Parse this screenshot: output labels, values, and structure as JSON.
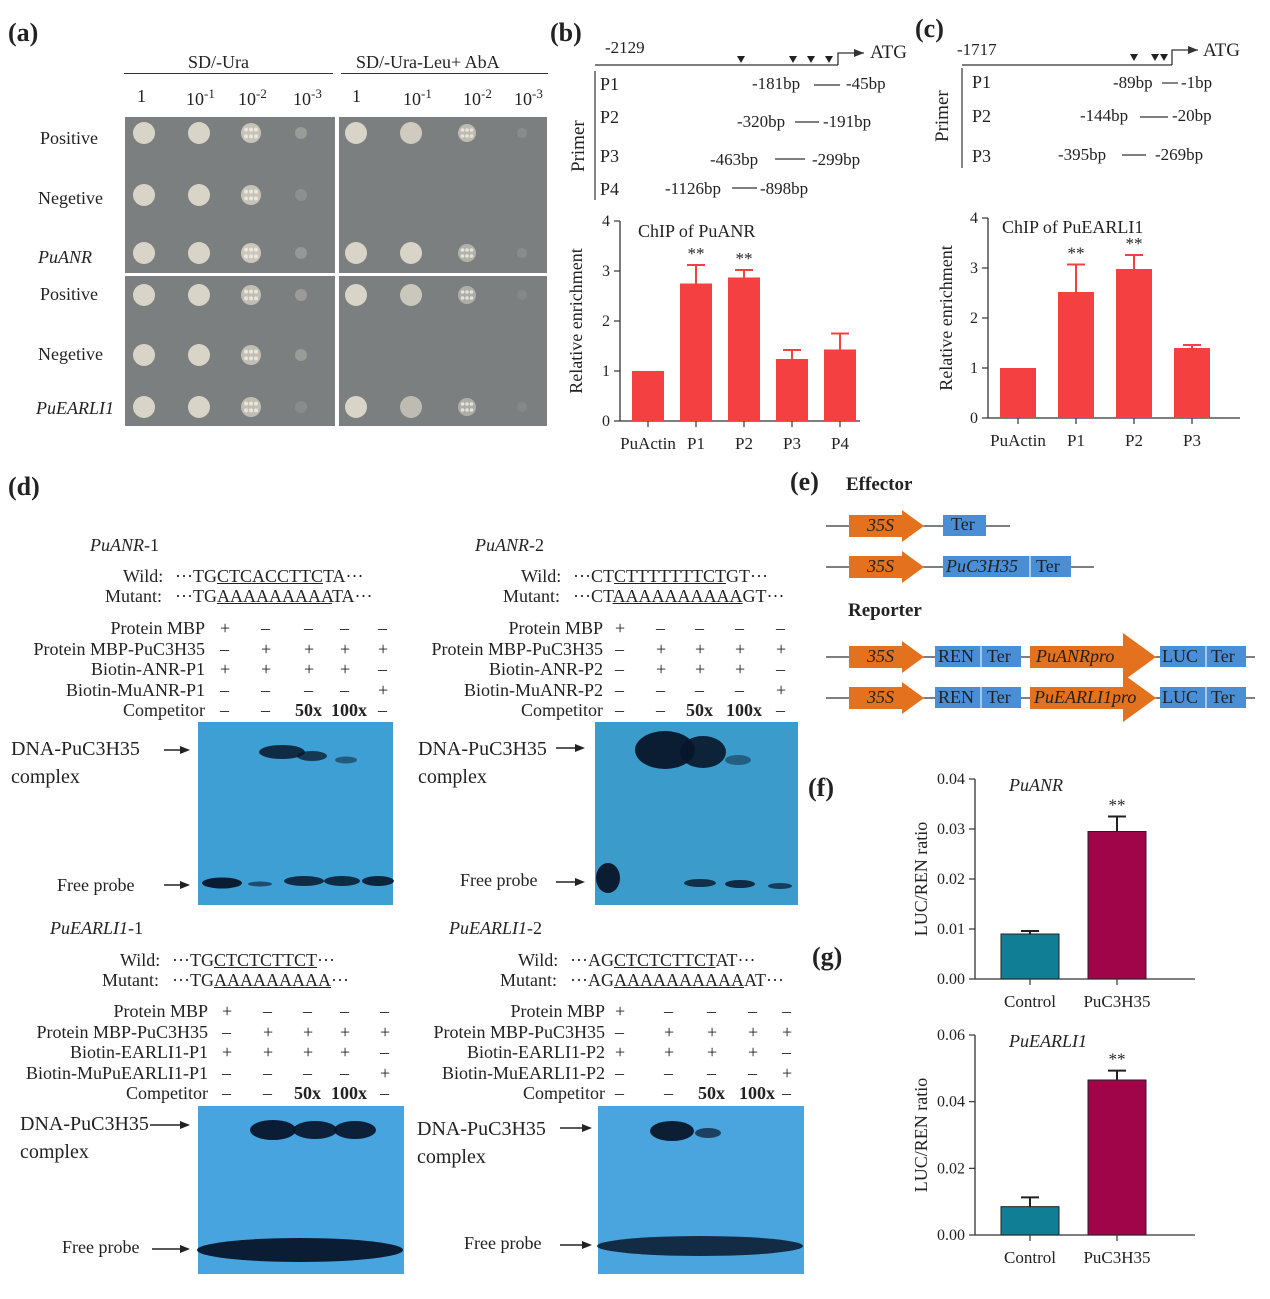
{
  "panel_labels": {
    "a": "(a)",
    "b": "(b)",
    "c": "(c)",
    "d": "(d)",
    "e": "(e)",
    "f": "(f)",
    "g": "(g)"
  },
  "panel_a": {
    "media": [
      "SD/-Ura",
      "SD/-Ura-Leu+ AbA"
    ],
    "dilutions": [
      "1",
      "10",
      "-1",
      "10",
      "-2",
      "10",
      "-3"
    ],
    "rows": [
      "Positive",
      "Negetive",
      "PuANR",
      "Positive",
      "Negetive",
      "PuEARLI1"
    ]
  },
  "panel_b": {
    "start": "-2129",
    "atg": "ATG",
    "primer_label": "Primer",
    "primers": [
      {
        "name": "P1",
        "from": "-181bp",
        "to": "-45bp"
      },
      {
        "name": "P2",
        "from": "-320bp",
        "to": "-191bp"
      },
      {
        "name": "P3",
        "from": "-463bp",
        "to": "-299bp"
      },
      {
        "name": "P4",
        "from": "-1126bp",
        "to": "-898bp"
      }
    ]
  },
  "panel_c": {
    "start": "-1717",
    "atg": "ATG",
    "primer_label": "Primer",
    "primers": [
      {
        "name": "P1",
        "from": "-89bp",
        "to": "-1bp"
      },
      {
        "name": "P2",
        "from": "-144bp",
        "to": "-20bp"
      },
      {
        "name": "P3",
        "from": "-395bp",
        "to": "-269bp"
      }
    ]
  },
  "panel_d": {
    "blocks": [
      {
        "title": "PuANR",
        "suffix": "-1",
        "wild_label": "Wild:",
        "wild_pre": "···TG",
        "wild_core": "CTCACCTTC",
        "wild_post": "TA···",
        "mut_label": "Mutant:",
        "mut_pre": "···TG",
        "mut_core": "AAAAAAAAA",
        "mut_post": "TA···",
        "rows": [
          {
            "label": "Protein MBP",
            "signs": [
              "+",
              "–",
              "–",
              "–",
              "–"
            ]
          },
          {
            "label": "Protein MBP-PuC3H35",
            "signs": [
              "–",
              "+",
              "+",
              "+",
              "+"
            ]
          },
          {
            "label": "Biotin-ANR-P1",
            "signs": [
              "+",
              "+",
              "+",
              "+",
              "–"
            ]
          },
          {
            "label": "Biotin-MuANR-P1",
            "signs": [
              "–",
              "–",
              "–",
              "–",
              "+"
            ]
          },
          {
            "label": "Competitor",
            "signs": [
              "–",
              "–",
              "50x",
              "100x",
              "–"
            ]
          }
        ],
        "complex": [
          "DNA-PuC3H35",
          "complex"
        ],
        "free": "Free probe"
      },
      {
        "title": "PuANR",
        "suffix": "-2",
        "wild_label": "Wild:",
        "wild_pre": "···CT",
        "wild_core": "CTTTTTTTCT",
        "wild_post": "GT···",
        "mut_label": "Mutant:",
        "mut_pre": "···CT",
        "mut_core": "AAAAAAAAAA",
        "mut_post": "GT···",
        "rows": [
          {
            "label": "Protein MBP",
            "signs": [
              "+",
              "–",
              "–",
              "–",
              "–"
            ]
          },
          {
            "label": "Protein MBP-PuC3H35",
            "signs": [
              "–",
              "+",
              "+",
              "+",
              "+"
            ]
          },
          {
            "label": "Biotin-ANR-P2",
            "signs": [
              "–",
              "+",
              "+",
              "+",
              "–"
            ]
          },
          {
            "label": "Biotin-MuANR-P2",
            "signs": [
              "–",
              "–",
              "–",
              "–",
              "+"
            ]
          },
          {
            "label": "Competitor",
            "signs": [
              "–",
              "–",
              "50x",
              "100x",
              "–"
            ]
          }
        ],
        "complex": [
          "DNA-PuC3H35",
          "complex"
        ],
        "free": "Free probe"
      },
      {
        "title": "PuEARLI1",
        "suffix": "-1",
        "wild_label": "Wild:",
        "wild_pre": "···TG",
        "wild_core": "CTCTCTTCT",
        "wild_post": "···",
        "mut_label": "Mutant:",
        "mut_pre": "···TG",
        "mut_core": "AAAAAAAAA",
        "mut_post": "···",
        "rows": [
          {
            "label": "Protein MBP",
            "signs": [
              "+",
              "–",
              "–",
              "–",
              "–"
            ]
          },
          {
            "label": "Protein MBP-PuC3H35",
            "signs": [
              "–",
              "+",
              "+",
              "+",
              "+"
            ]
          },
          {
            "label": "Biotin-EARLI1-P1",
            "signs": [
              "+",
              "+",
              "+",
              "+",
              "–"
            ]
          },
          {
            "label": "Biotin-MuPuEARLI1-P1",
            "signs": [
              "–",
              "–",
              "–",
              "–",
              "+"
            ]
          },
          {
            "label": "Competitor",
            "signs": [
              "–",
              "–",
              "50x",
              "100x",
              "–"
            ]
          }
        ],
        "complex": [
          "DNA-PuC3H35",
          "complex"
        ],
        "free": "Free probe"
      },
      {
        "title": "PuEARLI1",
        "suffix": "-2",
        "wild_label": "Wild:",
        "wild_pre": "···AG",
        "wild_core": "CTCTCTTCT",
        "wild_post": "AT···",
        "mut_label": "Mutant:",
        "mut_pre": "···AG",
        "mut_core": "AAAAAAAAAA",
        "mut_post": "AT···",
        "rows": [
          {
            "label": "Protein MBP",
            "signs": [
              "+",
              "–",
              "–",
              "–",
              "–"
            ]
          },
          {
            "label": "Protein MBP-PuC3H35",
            "signs": [
              "–",
              "+",
              "+",
              "+",
              "+"
            ]
          },
          {
            "label": "Biotin-EARLI1-P2",
            "signs": [
              "+",
              "+",
              "+",
              "+",
              "–"
            ]
          },
          {
            "label": "Biotin-MuEARLI1-P2",
            "signs": [
              "–",
              "–",
              "–",
              "–",
              "+"
            ]
          },
          {
            "label": "Competitor",
            "signs": [
              "–",
              "–",
              "50x",
              "100x",
              "–"
            ]
          }
        ],
        "complex": [
          "DNA-PuC3H35",
          "complex"
        ],
        "free": "Free probe"
      }
    ]
  },
  "panel_e": {
    "effector_title": "Effector",
    "reporter_title": "Reporter",
    "promoter": "35S",
    "ter": "Ter",
    "gene": "PuC3H35",
    "ren": "REN",
    "luc": "LUC",
    "pro1": "PuANRpro",
    "pro2": "PuEARLI1pro"
  },
  "colors": {
    "bar_red": "#f44040",
    "bar_teal": "#107f95",
    "bar_maroon": "#a0054a",
    "orange": "#e3711d",
    "blue_box": "#4a8ed6"
  },
  "chart_data": [
    {
      "id": "chipANR",
      "type": "bar",
      "title": "ChIP of PuANR",
      "ylabel": "Relative enrichment",
      "categories": [
        "PuActin",
        "P1",
        "P2",
        "P3",
        "P4"
      ],
      "values": [
        1.0,
        2.75,
        2.87,
        1.24,
        1.43
      ],
      "errors": [
        0,
        0.37,
        0.15,
        0.18,
        0.32
      ],
      "significance": [
        "",
        "**",
        "**",
        "",
        ""
      ],
      "ylim": [
        0,
        4
      ],
      "yticks": [
        "0",
        "1",
        "2",
        "3",
        "4"
      ]
    },
    {
      "id": "chipEARLI1",
      "type": "bar",
      "title": "ChIP of PuEARLI1",
      "ylabel": "Relative enrichment",
      "categories": [
        "PuActin",
        "P1",
        "P2",
        "P3"
      ],
      "values": [
        1.0,
        2.52,
        2.98,
        1.4
      ],
      "errors": [
        0,
        0.55,
        0.28,
        0.06
      ],
      "significance": [
        "",
        "**",
        "**",
        ""
      ],
      "ylim": [
        0,
        4
      ],
      "yticks": [
        "0",
        "1",
        "2",
        "3",
        "4"
      ]
    },
    {
      "id": "lucANR",
      "type": "bar",
      "title": "PuANR",
      "ylabel": "LUC/REN ratio",
      "categories": [
        "Control",
        "PuC3H35"
      ],
      "values": [
        0.009,
        0.0295
      ],
      "errors": [
        0.0006,
        0.003
      ],
      "significance": [
        "",
        "**"
      ],
      "ylim": [
        0,
        0.04
      ],
      "yticks": [
        "0.00",
        "0.01",
        "0.02",
        "0.03",
        "0.04"
      ]
    },
    {
      "id": "lucEARLI1",
      "type": "bar",
      "title": "PuEARLI1",
      "ylabel": "LUC/REN ratio",
      "categories": [
        "Control",
        "PuC3H35"
      ],
      "values": [
        0.0085,
        0.0465
      ],
      "errors": [
        0.0028,
        0.0028
      ],
      "significance": [
        "",
        "**"
      ],
      "ylim": [
        0,
        0.06
      ],
      "yticks": [
        "0.00",
        "0.02",
        "0.04",
        "0.06"
      ]
    }
  ]
}
